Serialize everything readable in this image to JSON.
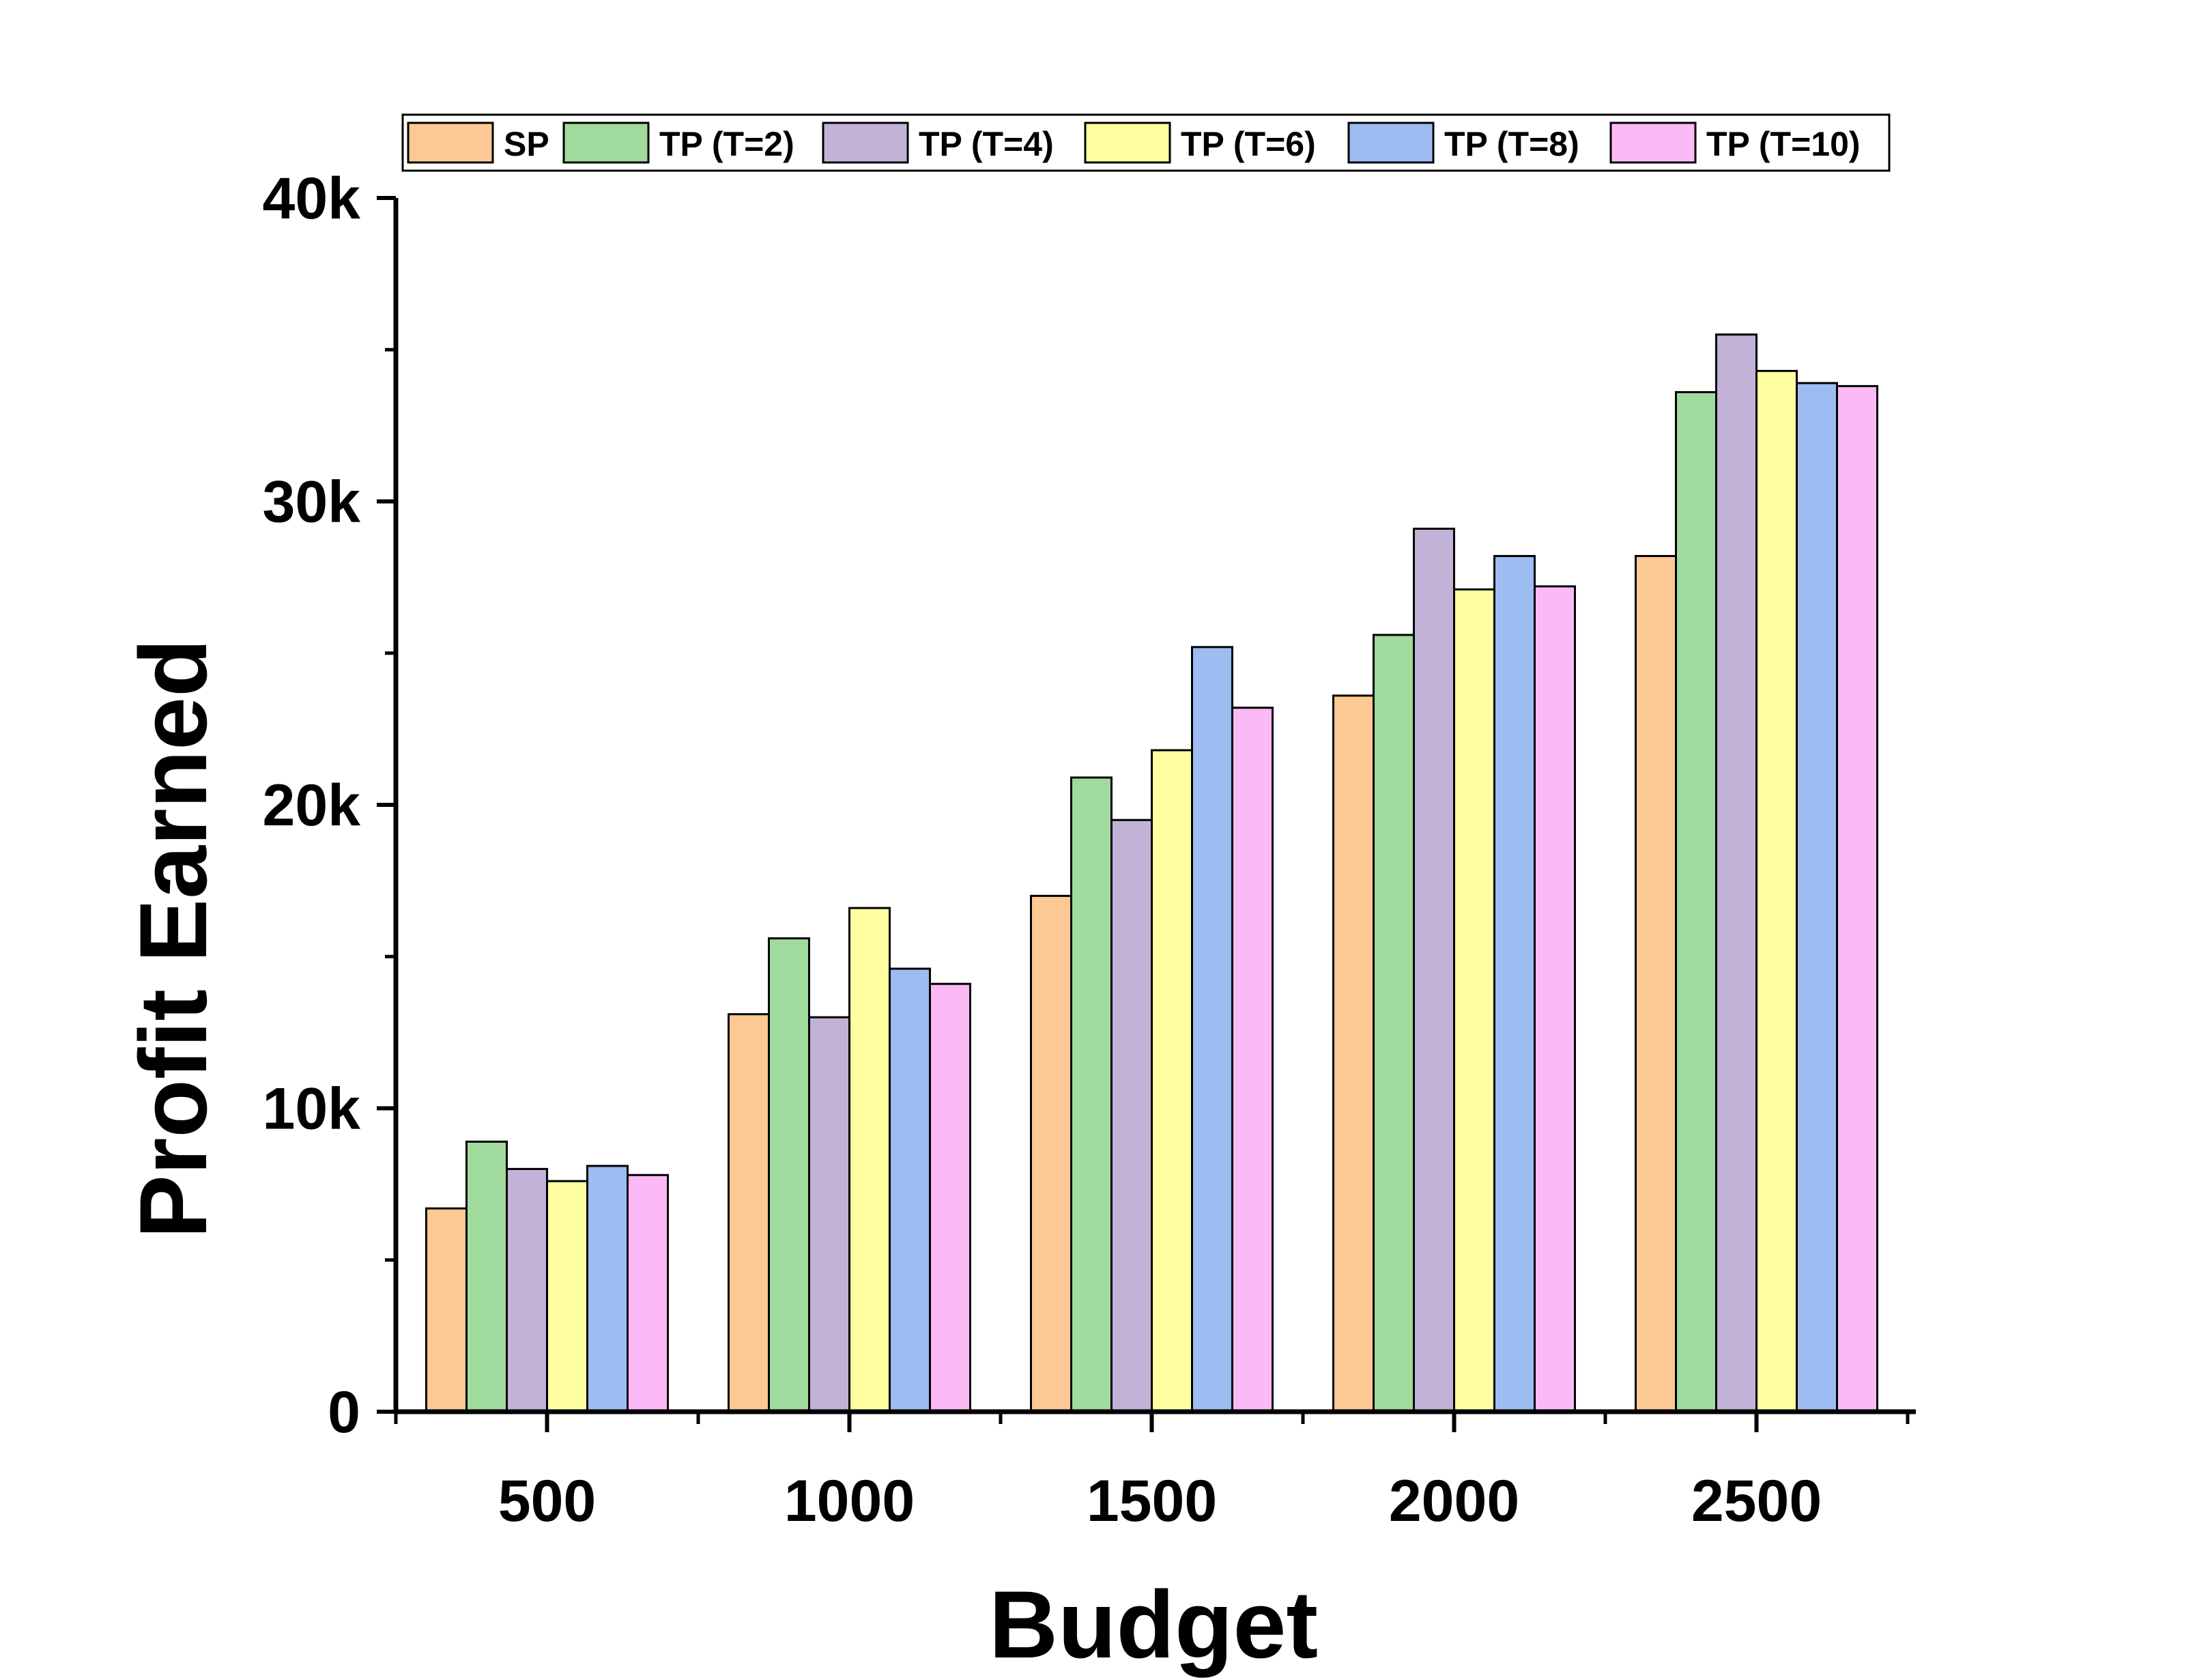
{
  "chart_data": {
    "type": "bar",
    "title": "",
    "xlabel": "Budget",
    "ylabel": "Profit Earned",
    "categories": [
      "500",
      "1000",
      "1500",
      "2000",
      "2500"
    ],
    "ylim": [
      0,
      40000
    ],
    "yticks": [
      {
        "value": 0,
        "label": "0"
      },
      {
        "value": 10000,
        "label": "10k"
      },
      {
        "value": 20000,
        "label": "20k"
      },
      {
        "value": 30000,
        "label": "30k"
      },
      {
        "value": 40000,
        "label": "40k"
      }
    ],
    "grid": false,
    "legend_position": "top",
    "series": [
      {
        "name": "SP",
        "color": "#FCC994",
        "values": [
          6700,
          13100,
          17000,
          23600,
          28200
        ]
      },
      {
        "name": "TP (T=2)",
        "color": "#A0DA9C",
        "values": [
          8900,
          15600,
          20900,
          25600,
          33600
        ]
      },
      {
        "name": "TP (T=4)",
        "color": "#C2B2D8",
        "values": [
          8000,
          13000,
          19500,
          29100,
          35500
        ]
      },
      {
        "name": "TP (T=6)",
        "color": "#FFFEA0",
        "values": [
          7600,
          16600,
          21800,
          27100,
          34300
        ]
      },
      {
        "name": "TP (T=8)",
        "color": "#9DBCF2",
        "values": [
          8100,
          14600,
          25200,
          28200,
          33900
        ]
      },
      {
        "name": "TP (T=10)",
        "color": "#FBBAF6",
        "values": [
          7800,
          14100,
          23200,
          27200,
          33800
        ]
      }
    ]
  }
}
